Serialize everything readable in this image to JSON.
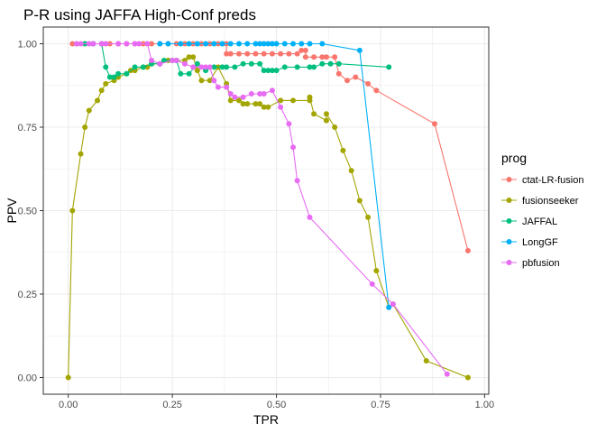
{
  "chart_data": {
    "type": "line",
    "title": "P-R using JAFFA High-Conf preds",
    "xlabel": "TPR",
    "ylabel": "PPV",
    "xlim": [
      -0.06,
      1.01
    ],
    "ylim": [
      -0.05,
      1.05
    ],
    "x_ticks": [
      0.0,
      0.25,
      0.5,
      0.75,
      1.0
    ],
    "x_tick_labels": [
      "0.00",
      "0.25",
      "0.50",
      "0.75",
      "1.00"
    ],
    "y_ticks": [
      0.0,
      0.25,
      0.5,
      0.75,
      1.0
    ],
    "y_tick_labels": [
      "0.00",
      "0.25",
      "0.50",
      "0.75",
      "1.00"
    ],
    "grid": true,
    "legend": {
      "title": "prog",
      "position": "right"
    },
    "series": [
      {
        "name": "ctat-LR-fusion",
        "color": "#F8766D",
        "points": [
          [
            0.01,
            1.0
          ],
          [
            0.02,
            1.0
          ],
          [
            0.04,
            1.0
          ],
          [
            0.06,
            1.0
          ],
          [
            0.08,
            1.0
          ],
          [
            0.1,
            1.0
          ],
          [
            0.12,
            1.0
          ],
          [
            0.14,
            1.0
          ],
          [
            0.16,
            1.0
          ],
          [
            0.18,
            1.0
          ],
          [
            0.2,
            1.0
          ],
          [
            0.22,
            1.0
          ],
          [
            0.24,
            1.0
          ],
          [
            0.26,
            1.0
          ],
          [
            0.28,
            1.0
          ],
          [
            0.3,
            1.0
          ],
          [
            0.32,
            1.0
          ],
          [
            0.34,
            1.0
          ],
          [
            0.36,
            1.0
          ],
          [
            0.38,
            1.0
          ],
          [
            0.38,
            0.97
          ],
          [
            0.39,
            0.97
          ],
          [
            0.41,
            0.97
          ],
          [
            0.43,
            0.97
          ],
          [
            0.45,
            0.97
          ],
          [
            0.47,
            0.97
          ],
          [
            0.49,
            0.97
          ],
          [
            0.51,
            0.97
          ],
          [
            0.53,
            0.97
          ],
          [
            0.55,
            0.97
          ],
          [
            0.56,
            0.98
          ],
          [
            0.57,
            0.98
          ],
          [
            0.57,
            0.96
          ],
          [
            0.59,
            0.96
          ],
          [
            0.61,
            0.96
          ],
          [
            0.62,
            0.96
          ],
          [
            0.64,
            0.96
          ],
          [
            0.65,
            0.91
          ],
          [
            0.67,
            0.89
          ],
          [
            0.69,
            0.9
          ],
          [
            0.72,
            0.88
          ],
          [
            0.74,
            0.86
          ],
          [
            0.88,
            0.76
          ],
          [
            0.96,
            0.38
          ]
        ]
      },
      {
        "name": "fusionseeker",
        "color": "#A3A500",
        "points": [
          [
            0.0,
            0.0
          ],
          [
            0.01,
            0.5
          ],
          [
            0.03,
            0.67
          ],
          [
            0.04,
            0.75
          ],
          [
            0.05,
            0.8
          ],
          [
            0.07,
            0.83
          ],
          [
            0.08,
            0.86
          ],
          [
            0.09,
            0.88
          ],
          [
            0.11,
            0.89
          ],
          [
            0.12,
            0.9
          ],
          [
            0.14,
            0.91
          ],
          [
            0.15,
            0.92
          ],
          [
            0.16,
            0.92
          ],
          [
            0.18,
            0.93
          ],
          [
            0.19,
            0.93
          ],
          [
            0.2,
            0.94
          ],
          [
            0.22,
            0.94
          ],
          [
            0.24,
            0.95
          ],
          [
            0.26,
            0.95
          ],
          [
            0.28,
            0.95
          ],
          [
            0.29,
            0.96
          ],
          [
            0.3,
            0.96
          ],
          [
            0.31,
            0.92
          ],
          [
            0.32,
            0.89
          ],
          [
            0.34,
            0.89
          ],
          [
            0.36,
            0.93
          ],
          [
            0.38,
            0.88
          ],
          [
            0.39,
            0.83
          ],
          [
            0.41,
            0.83
          ],
          [
            0.42,
            0.82
          ],
          [
            0.43,
            0.82
          ],
          [
            0.45,
            0.82
          ],
          [
            0.46,
            0.82
          ],
          [
            0.47,
            0.81
          ],
          [
            0.48,
            0.81
          ],
          [
            0.51,
            0.83
          ],
          [
            0.54,
            0.83
          ],
          [
            0.58,
            0.83
          ],
          [
            0.58,
            0.84
          ],
          [
            0.59,
            0.79
          ],
          [
            0.62,
            0.77
          ],
          [
            0.62,
            0.79
          ],
          [
            0.64,
            0.75
          ],
          [
            0.66,
            0.68
          ],
          [
            0.68,
            0.62
          ],
          [
            0.7,
            0.53
          ],
          [
            0.72,
            0.48
          ],
          [
            0.74,
            0.32
          ],
          [
            0.77,
            0.21
          ],
          [
            0.78,
            0.22
          ],
          [
            0.86,
            0.05
          ],
          [
            0.96,
            0.0
          ]
        ]
      },
      {
        "name": "JAFFAL",
        "color": "#00BF7D",
        "points": [
          [
            0.04,
            1.0
          ],
          [
            0.06,
            1.0
          ],
          [
            0.08,
            1.0
          ],
          [
            0.09,
            0.93
          ],
          [
            0.1,
            0.9
          ],
          [
            0.11,
            0.9
          ],
          [
            0.12,
            0.91
          ],
          [
            0.14,
            0.91
          ],
          [
            0.16,
            0.93
          ],
          [
            0.18,
            0.93
          ],
          [
            0.2,
            0.94
          ],
          [
            0.22,
            0.94
          ],
          [
            0.23,
            0.95
          ],
          [
            0.25,
            0.95
          ],
          [
            0.26,
            0.95
          ],
          [
            0.27,
            0.91
          ],
          [
            0.29,
            0.91
          ],
          [
            0.31,
            0.94
          ],
          [
            0.33,
            0.92
          ],
          [
            0.35,
            0.93
          ],
          [
            0.37,
            0.93
          ],
          [
            0.38,
            0.93
          ],
          [
            0.4,
            0.93
          ],
          [
            0.42,
            0.94
          ],
          [
            0.44,
            0.94
          ],
          [
            0.46,
            0.94
          ],
          [
            0.47,
            0.92
          ],
          [
            0.48,
            0.92
          ],
          [
            0.49,
            0.92
          ],
          [
            0.5,
            0.92
          ],
          [
            0.52,
            0.93
          ],
          [
            0.55,
            0.93
          ],
          [
            0.58,
            0.93
          ],
          [
            0.59,
            0.93
          ],
          [
            0.61,
            0.94
          ],
          [
            0.63,
            0.94
          ],
          [
            0.65,
            0.94
          ],
          [
            0.77,
            0.93
          ]
        ]
      },
      {
        "name": "LongGF",
        "color": "#00B0F6",
        "points": [
          [
            0.22,
            1.0
          ],
          [
            0.24,
            1.0
          ],
          [
            0.27,
            1.0
          ],
          [
            0.29,
            1.0
          ],
          [
            0.31,
            1.0
          ],
          [
            0.33,
            1.0
          ],
          [
            0.35,
            1.0
          ],
          [
            0.37,
            1.0
          ],
          [
            0.39,
            1.0
          ],
          [
            0.41,
            1.0
          ],
          [
            0.43,
            1.0
          ],
          [
            0.45,
            1.0
          ],
          [
            0.46,
            1.0
          ],
          [
            0.47,
            1.0
          ],
          [
            0.48,
            1.0
          ],
          [
            0.49,
            1.0
          ],
          [
            0.5,
            1.0
          ],
          [
            0.52,
            1.0
          ],
          [
            0.54,
            1.0
          ],
          [
            0.56,
            1.0
          ],
          [
            0.58,
            1.0
          ],
          [
            0.61,
            1.0
          ],
          [
            0.7,
            0.98
          ],
          [
            0.77,
            0.21
          ]
        ]
      },
      {
        "name": "pbfusion",
        "color": "#E76BF3",
        "points": [
          [
            0.02,
            1.0
          ],
          [
            0.03,
            1.0
          ],
          [
            0.05,
            1.0
          ],
          [
            0.06,
            1.0
          ],
          [
            0.08,
            1.0
          ],
          [
            0.09,
            1.0
          ],
          [
            0.12,
            1.0
          ],
          [
            0.14,
            1.0
          ],
          [
            0.16,
            1.0
          ],
          [
            0.17,
            1.0
          ],
          [
            0.19,
            1.0
          ],
          [
            0.2,
            0.95
          ],
          [
            0.22,
            0.94
          ],
          [
            0.25,
            0.95
          ],
          [
            0.26,
            0.95
          ],
          [
            0.28,
            0.94
          ],
          [
            0.3,
            0.93
          ],
          [
            0.32,
            0.93
          ],
          [
            0.33,
            0.93
          ],
          [
            0.34,
            0.93
          ],
          [
            0.35,
            0.89
          ],
          [
            0.36,
            0.87
          ],
          [
            0.38,
            0.87
          ],
          [
            0.39,
            0.85
          ],
          [
            0.4,
            0.84
          ],
          [
            0.42,
            0.84
          ],
          [
            0.44,
            0.85
          ],
          [
            0.46,
            0.85
          ],
          [
            0.47,
            0.85
          ],
          [
            0.49,
            0.86
          ],
          [
            0.51,
            0.81
          ],
          [
            0.53,
            0.76
          ],
          [
            0.54,
            0.69
          ],
          [
            0.55,
            0.59
          ],
          [
            0.58,
            0.48
          ],
          [
            0.73,
            0.28
          ],
          [
            0.78,
            0.22
          ],
          [
            0.91,
            0.01
          ]
        ]
      }
    ]
  }
}
